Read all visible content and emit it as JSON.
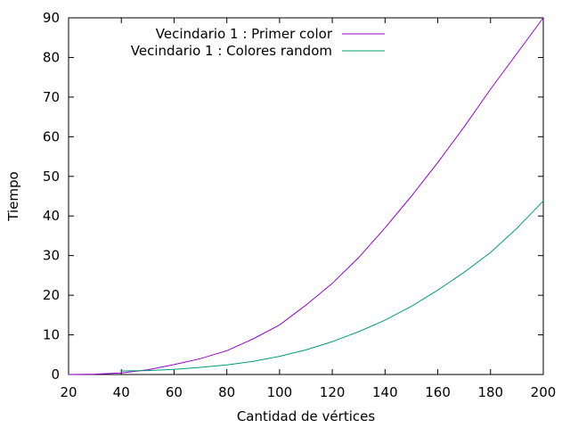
{
  "chart_data": {
    "type": "line",
    "xlabel": "Cantidad de vértices",
    "ylabel": "Tiempo",
    "xlim": [
      20,
      200
    ],
    "ylim": [
      0,
      90
    ],
    "x_ticks": [
      20,
      40,
      60,
      80,
      100,
      120,
      140,
      160,
      180,
      200
    ],
    "y_ticks": [
      0,
      10,
      20,
      30,
      40,
      50,
      60,
      70,
      80,
      90
    ],
    "grid": false,
    "legend_position": "top-left",
    "series": [
      {
        "name": "Vecindario 1 : Primer color",
        "color": "#9400d3",
        "x": [
          20,
          30,
          40,
          50,
          60,
          70,
          80,
          90,
          100,
          110,
          120,
          130,
          140,
          150,
          160,
          170,
          180,
          190,
          200
        ],
        "y": [
          0.0,
          0.1,
          0.4,
          1.2,
          2.5,
          4.0,
          6.0,
          9.0,
          12.5,
          17.5,
          23.0,
          29.5,
          37.0,
          45.0,
          53.5,
          62.5,
          72.0,
          81.0,
          90.0
        ]
      },
      {
        "name": "Vecindario 1 : Colores random",
        "color": "#009e73",
        "x": [
          40,
          50,
          60,
          70,
          80,
          90,
          100,
          110,
          120,
          130,
          140,
          150,
          160,
          170,
          180,
          190,
          200
        ],
        "y": [
          0.9,
          1.0,
          1.3,
          1.8,
          2.4,
          3.3,
          4.6,
          6.2,
          8.3,
          10.8,
          13.7,
          17.2,
          21.3,
          25.8,
          30.8,
          36.9,
          43.8
        ]
      }
    ]
  }
}
